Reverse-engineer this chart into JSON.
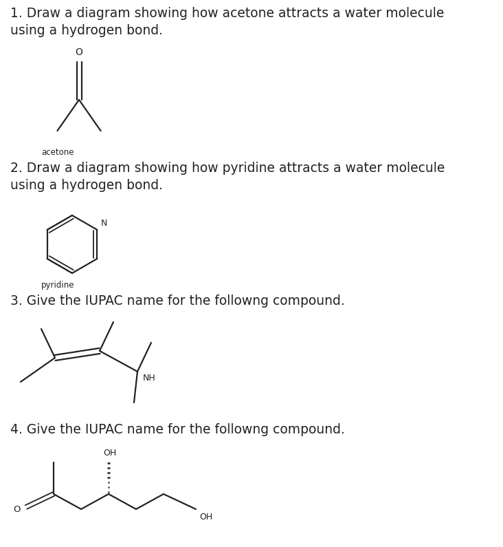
{
  "bg_color": "#ffffff",
  "text_color": "#222222",
  "line_color": "#222222",
  "title_fontsize": 13.5,
  "label_fontsize": 8.5,
  "q1_text": "1. Draw a diagram showing how acetone attracts a water molecule\nusing a hydrogen bond.",
  "q2_text": "2. Draw a diagram showing how pyridine attracts a water molecule\nusing a hydrogen bond.",
  "q3_text": "3. Give the IUPAC name for the followng compound.",
  "q4_text": "4. Give the IUPAC name for the followng compound.",
  "acetone_label": "acetone",
  "pyridine_label": "pyridine"
}
